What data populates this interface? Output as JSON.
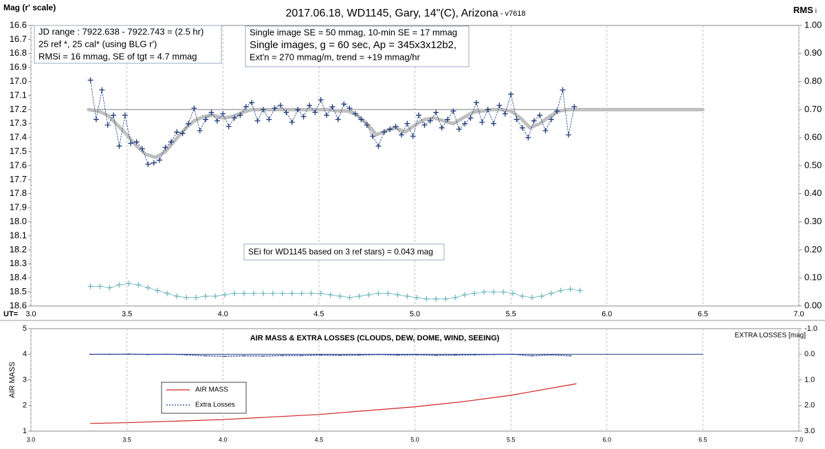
{
  "chart_data": [
    {
      "type": "line",
      "title": "2017.06.18,  WD1145, Gary, 14\"(C), Arizona",
      "title_suffix": " - v7618",
      "ylabel": "Mag (r' scale)",
      "y2label": "RMS",
      "y2label_sub": "i",
      "xlabel": "UT=",
      "xlim": [
        3,
        7
      ],
      "xticks": [
        {
          "value": 3,
          "label": "3.0"
        },
        3.5,
        {
          "value": 4,
          "label": "4.0"
        },
        4.5,
        {
          "value": 5,
          "label": "5.0"
        },
        5.5,
        {
          "value": 6,
          "label": "6.0"
        },
        6.5,
        {
          "value": 7,
          "label": "7.0"
        }
      ],
      "ylim": [
        16.6,
        18.6
      ],
      "y_inverted": true,
      "yticks": [
        16.6,
        16.7,
        16.8,
        16.9,
        {
          "value": 17,
          "label": "17.0"
        },
        17.1,
        17.2,
        17.3,
        17.4,
        17.5,
        17.6,
        17.7,
        17.8,
        17.9,
        {
          "value": 18,
          "label": "18.0"
        },
        18.1,
        18.2,
        18.3,
        18.4,
        18.5,
        18.6
      ],
      "y2lim": [
        0,
        1
      ],
      "y2ticks": [
        {
          "value": 1,
          "label": "1.00"
        },
        {
          "value": 0.9,
          "label": "0.90"
        },
        {
          "value": 0.8,
          "label": "0.80"
        },
        {
          "value": 0.7,
          "label": "0.70"
        },
        {
          "value": 0.6,
          "label": "0.60"
        },
        {
          "value": 0.5,
          "label": "0.50"
        },
        {
          "value": 0.4,
          "label": "0.40"
        },
        {
          "value": 0.3,
          "label": "0.30"
        },
        {
          "value": 0.2,
          "label": "0.20"
        },
        {
          "value": 0.1,
          "label": "0.10"
        },
        {
          "value": 0,
          "label": "0.00"
        }
      ],
      "grid_x": true,
      "annotations": [
        {
          "lines": [
            "JD range  : 7922.638 - 7922.743  = (2.5 hr)",
            "25 ref *, 25 cal* (using BLG r')",
            "RMSi = 16 mmag, SE of tgt = 4.7 mmag"
          ]
        },
        {
          "lines": [
            "Single image SE = 50 mmag, 10-min SE = 17 mmag",
            "Single images, g = 60 sec, Ap = 345x3x12b2,",
            "Ext'n = 270  mmag/m, trend = +19 mmag/hr"
          ]
        },
        {
          "lines": [
            "SEi for WD1145 based on 3 ref stars) = 0.043 mag"
          ]
        }
      ],
      "series": [
        {
          "color": "#a6a6a6",
          "width": 1.5,
          "x": [
            3.3,
            6.5
          ],
          "values": [
            17.2,
            17.2
          ]
        },
        {
          "color": "#bfbfbf",
          "width": 5,
          "x": [
            3.3,
            3.35,
            3.4,
            3.45,
            3.5,
            3.55,
            3.6,
            3.65,
            3.7,
            3.75,
            3.8,
            3.85,
            3.9,
            3.95,
            4.0,
            4.05,
            4.1,
            4.15,
            4.2,
            4.25,
            4.3,
            4.35,
            4.4,
            4.45,
            4.5,
            4.55,
            4.6,
            4.65,
            4.7,
            4.75,
            4.8,
            4.85,
            4.9,
            4.95,
            5.0,
            5.05,
            5.1,
            5.15,
            5.2,
            5.25,
            5.3,
            5.35,
            5.4,
            5.45,
            5.5,
            5.55,
            5.6,
            5.65,
            5.7,
            5.75,
            5.8,
            5.85,
            6.5
          ],
          "values": [
            17.2,
            17.21,
            17.24,
            17.31,
            17.38,
            17.46,
            17.52,
            17.54,
            17.5,
            17.42,
            17.34,
            17.28,
            17.25,
            17.24,
            17.26,
            17.25,
            17.22,
            17.2,
            17.2,
            17.2,
            17.2,
            17.2,
            17.2,
            17.2,
            17.2,
            17.2,
            17.21,
            17.21,
            17.24,
            17.3,
            17.38,
            17.35,
            17.33,
            17.36,
            17.31,
            17.27,
            17.26,
            17.28,
            17.3,
            17.26,
            17.22,
            17.21,
            17.2,
            17.2,
            17.21,
            17.26,
            17.33,
            17.3,
            17.25,
            17.21,
            17.2,
            17.2,
            17.2
          ]
        },
        {
          "color": "#1f3a7a",
          "width": 0.8,
          "dashed": true,
          "marker": "+",
          "x": [
            3.31,
            3.34,
            3.37,
            3.4,
            3.43,
            3.46,
            3.49,
            3.52,
            3.55,
            3.58,
            3.61,
            3.64,
            3.67,
            3.7,
            3.73,
            3.76,
            3.79,
            3.82,
            3.85,
            3.88,
            3.91,
            3.94,
            3.97,
            4.0,
            4.03,
            4.06,
            4.09,
            4.12,
            4.15,
            4.18,
            4.21,
            4.24,
            4.27,
            4.3,
            4.33,
            4.36,
            4.39,
            4.42,
            4.45,
            4.48,
            4.51,
            4.54,
            4.57,
            4.6,
            4.63,
            4.66,
            4.69,
            4.72,
            4.75,
            4.78,
            4.81,
            4.84,
            4.87,
            4.9,
            4.93,
            4.96,
            4.99,
            5.02,
            5.05,
            5.08,
            5.11,
            5.14,
            5.17,
            5.2,
            5.23,
            5.26,
            5.29,
            5.32,
            5.35,
            5.38,
            5.41,
            5.44,
            5.47,
            5.5,
            5.53,
            5.56,
            5.59,
            5.62,
            5.65,
            5.68,
            5.71,
            5.74,
            5.77,
            5.8,
            5.83
          ],
          "values": [
            16.99,
            17.27,
            17.06,
            17.31,
            17.24,
            17.46,
            17.24,
            17.44,
            17.43,
            17.48,
            17.59,
            17.58,
            17.56,
            17.47,
            17.43,
            17.36,
            17.37,
            17.3,
            17.19,
            17.35,
            17.27,
            17.22,
            17.28,
            17.23,
            17.32,
            17.26,
            17.24,
            17.18,
            17.15,
            17.28,
            17.2,
            17.27,
            17.19,
            17.17,
            17.22,
            17.29,
            17.2,
            17.25,
            17.17,
            17.22,
            17.13,
            17.24,
            17.18,
            17.27,
            17.16,
            17.19,
            17.23,
            17.27,
            17.31,
            17.39,
            17.46,
            17.36,
            17.34,
            17.32,
            17.38,
            17.3,
            17.39,
            17.24,
            17.31,
            17.28,
            17.22,
            17.33,
            17.27,
            17.21,
            17.34,
            17.3,
            17.26,
            17.15,
            17.29,
            17.2,
            17.3,
            17.17,
            17.23,
            17.09,
            17.27,
            17.33,
            17.4,
            17.28,
            17.24,
            17.35,
            17.27,
            17.21,
            17.06,
            17.38,
            17.18
          ]
        },
        {
          "color": "#6fb8c0",
          "width": 0.8,
          "marker": "+",
          "axis": "y2",
          "x": [
            3.31,
            3.36,
            3.41,
            3.46,
            3.51,
            3.56,
            3.61,
            3.66,
            3.71,
            3.76,
            3.81,
            3.86,
            3.91,
            3.96,
            4.01,
            4.06,
            4.11,
            4.16,
            4.21,
            4.26,
            4.31,
            4.36,
            4.41,
            4.46,
            4.51,
            4.56,
            4.61,
            4.66,
            4.71,
            4.76,
            4.81,
            4.86,
            4.91,
            4.96,
            5.01,
            5.06,
            5.11,
            5.16,
            5.21,
            5.26,
            5.31,
            5.36,
            5.41,
            5.46,
            5.51,
            5.56,
            5.61,
            5.66,
            5.71,
            5.76,
            5.81,
            5.86
          ],
          "values": [
            0.07,
            0.07,
            0.065,
            0.075,
            0.08,
            0.075,
            0.065,
            0.055,
            0.045,
            0.035,
            0.03,
            0.03,
            0.035,
            0.035,
            0.04,
            0.045,
            0.045,
            0.045,
            0.045,
            0.045,
            0.045,
            0.045,
            0.045,
            0.045,
            0.045,
            0.04,
            0.035,
            0.03,
            0.035,
            0.04,
            0.045,
            0.045,
            0.04,
            0.035,
            0.03,
            0.025,
            0.025,
            0.025,
            0.03,
            0.04,
            0.045,
            0.05,
            0.05,
            0.05,
            0.045,
            0.035,
            0.03,
            0.035,
            0.045,
            0.055,
            0.06,
            0.055
          ]
        }
      ]
    },
    {
      "type": "line",
      "title": "AIR MASS & EXTRA LOSSES (CLOUDS, DEW, DOME, WIND, SEEING)",
      "ylabel": "AIR MASS",
      "y2label": "EXTRA LOSSES [mag]",
      "xlim": [
        3,
        7
      ],
      "xticks": [
        {
          "value": 3,
          "label": "3.0"
        },
        3.5,
        {
          "value": 4,
          "label": "4.0"
        },
        4.5,
        {
          "value": 5,
          "label": "5.0"
        },
        5.5,
        {
          "value": 6,
          "label": "6.0"
        },
        6.5,
        {
          "value": 7,
          "label": "7.0"
        }
      ],
      "ylim": [
        1,
        5
      ],
      "yticks": [
        1,
        2,
        3,
        4,
        5
      ],
      "y2lim": [
        -1,
        3
      ],
      "y2_inverted": true,
      "y2ticks": [
        {
          "value": -1,
          "label": "-1.0"
        },
        {
          "value": 0,
          "label": "0.0"
        },
        {
          "value": 1,
          "label": "1.0"
        },
        {
          "value": 2,
          "label": "2.0"
        },
        {
          "value": 3,
          "label": "3.0"
        }
      ],
      "grid_x": true,
      "series": [
        {
          "color": "#1f3a7a",
          "width": 1,
          "axis": "y2",
          "x": [
            3.31,
            6.5
          ],
          "values": [
            0,
            0
          ]
        },
        {
          "name": "AIR MASS",
          "color": "#d02020",
          "width": 1.2,
          "x": [
            3.31,
            3.5,
            4.0,
            4.5,
            5.0,
            5.25,
            5.5,
            5.84
          ],
          "values": [
            1.3,
            1.33,
            1.45,
            1.65,
            1.95,
            2.15,
            2.4,
            2.85
          ]
        },
        {
          "name": "Extra Losses",
          "color": "#1f3a9a",
          "width": 1.2,
          "dashed": true,
          "marker": "dot",
          "axis": "y2",
          "x": [
            3.31,
            3.41,
            3.51,
            3.61,
            3.71,
            3.81,
            3.91,
            4.01,
            4.11,
            4.21,
            4.31,
            4.41,
            4.51,
            4.61,
            4.71,
            4.81,
            4.91,
            5.01,
            5.11,
            5.21,
            5.31,
            5.41,
            5.51,
            5.61,
            5.71,
            5.81
          ],
          "values": [
            0.0,
            0.0,
            -0.01,
            0.01,
            0.0,
            0.02,
            0.06,
            0.08,
            0.06,
            0.07,
            0.05,
            0.05,
            0.03,
            0.04,
            0.03,
            0.01,
            0.03,
            0.02,
            0.04,
            0.03,
            0.02,
            0.01,
            0.0,
            0.06,
            0.02,
            0.06
          ]
        }
      ]
    }
  ]
}
